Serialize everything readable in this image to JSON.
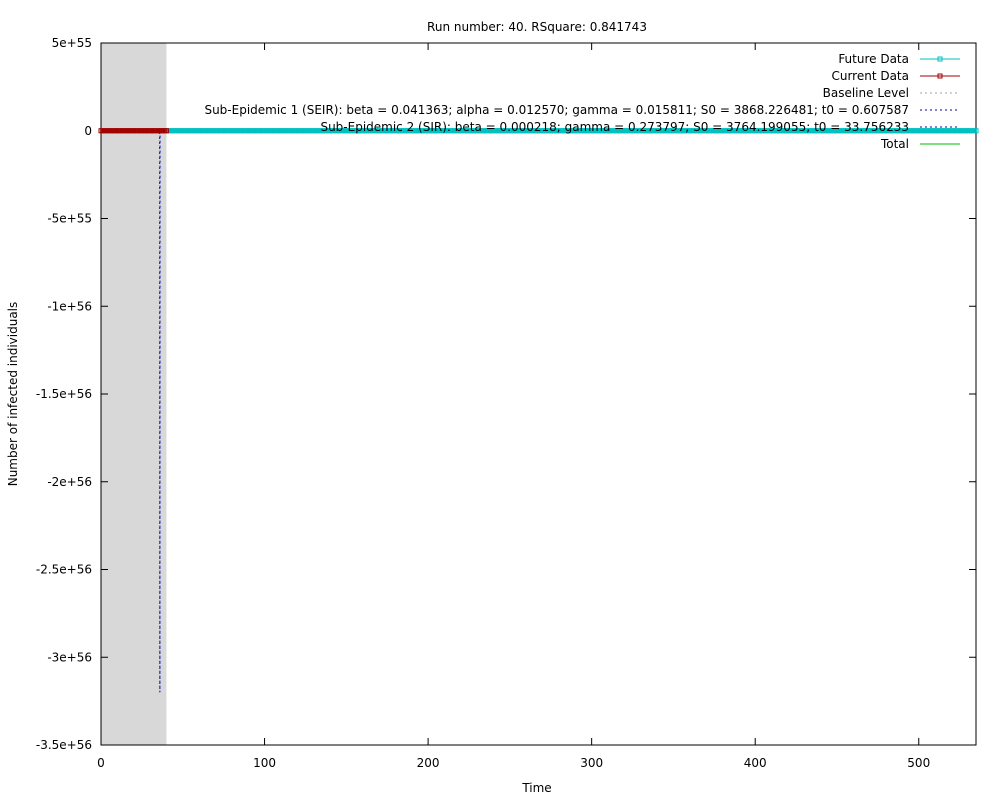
{
  "chart_data": {
    "type": "line",
    "title": "Run number: 40. RSquare: 0.841743",
    "xlabel": "Time",
    "ylabel": "Number of infected individuals",
    "xlim": [
      0,
      535
    ],
    "ylim": [
      -3.5e+56,
      5e+55
    ],
    "x_ticks": [
      0,
      100,
      200,
      300,
      400,
      500
    ],
    "x_tick_labels": [
      "0",
      "100",
      "200",
      "300",
      "400",
      "500"
    ],
    "y_ticks": [
      5e+55,
      0,
      -5e+55,
      -1e+56,
      -1.5e+56,
      -2e+56,
      -2.5e+56,
      -3e+56,
      -3.5e+56
    ],
    "y_tick_labels": [
      "5e+55",
      "0",
      "-5e+55",
      "-1e+56",
      "-1.5e+56",
      "-2e+56",
      "-2.5e+56",
      "-3e+56",
      "-3.5e+56"
    ],
    "grid": false,
    "legend_position": "top-right",
    "shaded_region": {
      "x_start": 0,
      "x_end": 40,
      "color": "#d8d8d8"
    },
    "series": [
      {
        "name": "Future Data",
        "color": "#00c0c0",
        "style": "line-points",
        "x_start": 40,
        "x_end": 535,
        "step": 1,
        "value": 0
      },
      {
        "name": "Current Data",
        "color": "#a00000",
        "style": "line-points",
        "x_start": 0,
        "x_end": 40,
        "step": 1,
        "value": 0
      },
      {
        "name": "Baseline Level",
        "color": "#a0a0a0",
        "style": "dotted",
        "x_start": 0,
        "x_end": 535,
        "value": 0
      },
      {
        "name": "Sub-Epidemic 1 (SEIR): beta = 0.041363; alpha = 0.012570; gamma = 0.015811; S0 = 3868.226481; t0 = 0.607587",
        "color": "#0000a0",
        "style": "dotted",
        "x": [
          0,
          35.9,
          36,
          36.1,
          40,
          535
        ],
        "y": [
          0,
          0,
          -3.2e+56,
          0,
          0,
          0
        ]
      },
      {
        "name": "Sub-Epidemic 2 (SIR): beta = 0.000218; gamma = 0.273797; S0 = 3764.199055; t0 = 33.756233",
        "color": "#0000a0",
        "style": "dotted",
        "x_start": 33.756233,
        "x_end": 535,
        "value": 0
      },
      {
        "name": "Total",
        "color": "#00c000",
        "style": "solid",
        "x_start": 0,
        "x_end": 535,
        "value": 0
      }
    ]
  }
}
